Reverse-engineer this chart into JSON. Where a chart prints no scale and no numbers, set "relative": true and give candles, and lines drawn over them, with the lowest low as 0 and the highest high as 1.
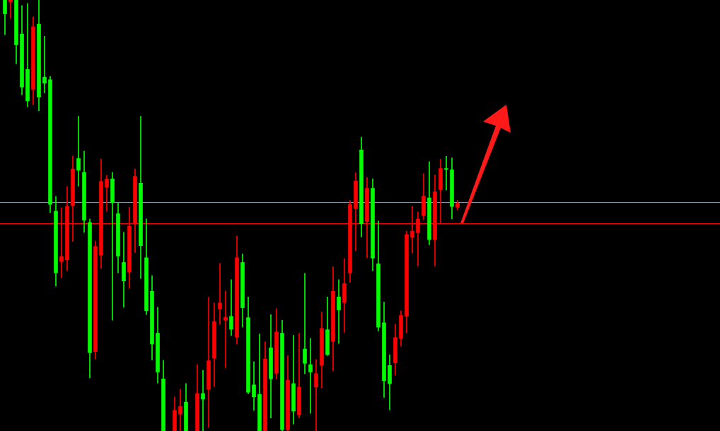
{
  "chart_data": {
    "type": "candlestick",
    "relative": true,
    "categories": [
      null,
      null,
      null,
      null,
      null,
      null,
      null,
      null,
      null,
      null,
      null,
      null,
      null,
      null,
      null,
      null,
      null,
      null,
      null,
      null,
      null,
      null,
      null,
      null,
      null,
      null,
      null,
      null,
      null,
      null,
      null,
      null,
      null,
      null,
      null,
      null,
      null,
      null,
      null,
      null,
      null,
      null,
      null,
      null,
      null,
      null,
      null,
      null,
      null,
      null,
      null,
      null,
      null,
      null,
      null,
      null,
      null,
      null,
      null,
      null,
      null,
      null,
      null,
      null,
      null,
      null,
      null,
      null,
      null,
      null,
      null,
      null,
      null,
      null,
      null,
      null,
      null,
      null,
      null,
      null,
      null
    ],
    "ohlc": [
      [
        1,
        1,
        0.92,
        0.968
      ],
      [
        0.996,
        1,
        0.957,
        1
      ],
      [
        1,
        1,
        0.852,
        0.896
      ],
      [
        0.921,
        0.987,
        0.78,
        0.798
      ],
      [
        0.839,
        0.992,
        0.752,
        0.766
      ],
      [
        0.793,
        0.961,
        0.757,
        0.938
      ],
      [
        0.944,
        1,
        0.743,
        0.775
      ],
      [
        0.821,
        0.916,
        0.784,
        0.807
      ],
      [
        0.815,
        0.823,
        0.507,
        0.526
      ],
      [
        0.51,
        0.544,
        0.336,
        0.367
      ],
      [
        0.393,
        0.518,
        0.356,
        0.405
      ],
      [
        0.397,
        0.567,
        0.372,
        0.521
      ],
      [
        0.523,
        0.638,
        0.44,
        0.608
      ],
      [
        0.632,
        0.73,
        0.568,
        0.605
      ],
      [
        0.6,
        0.649,
        0.461,
        0.489
      ],
      [
        0.484,
        0.492,
        0.123,
        0.182
      ],
      [
        0.184,
        0.441,
        0.167,
        0.428
      ],
      [
        0.408,
        0.631,
        0.377,
        0.579
      ],
      [
        0.566,
        0.593,
        0.51,
        0.585
      ],
      [
        0.585,
        0.6,
        0.257,
        0.53
      ],
      [
        0.504,
        0.53,
        0.367,
        0.406
      ],
      [
        0.391,
        0.461,
        0.287,
        0.348
      ],
      [
        0.369,
        0.519,
        0.331,
        0.475
      ],
      [
        0.481,
        0.608,
        0.414,
        0.591
      ],
      [
        0.575,
        0.73,
        0.354,
        0.43
      ],
      [
        0.402,
        0.492,
        0.27,
        0.279
      ],
      [
        0.324,
        0.36,
        0.165,
        0.202
      ],
      [
        0.227,
        0.287,
        0.111,
        0.137
      ],
      [
        0.121,
        0.164,
        0,
        0
      ],
      null,
      [
        0,
        0.079,
        0,
        0.048
      ],
      [
        0.039,
        0.097,
        0,
        0.057
      ],
      [
        0.067,
        0.11,
        0,
        0
      ],
      null,
      [
        0,
        0.154,
        0,
        0.087
      ],
      [
        0.087,
        0.141,
        0,
        0.074
      ],
      [
        0.097,
        0.31,
        0.008,
        0.163
      ],
      [
        0.169,
        0.297,
        0.103,
        0.254
      ],
      [
        0.284,
        0.389,
        0.248,
        0.297
      ],
      [
        0.257,
        0.325,
        0.147,
        0.264
      ],
      [
        0.266,
        0.351,
        0.222,
        0.236
      ],
      [
        0.218,
        0.452,
        0.202,
        0.402
      ],
      [
        0.391,
        0.411,
        0.241,
        0.286
      ],
      [
        0.263,
        0.311,
        0.086,
        0.09
      ],
      [
        0.107,
        0.161,
        0.048,
        0.079
      ],
      [
        0.085,
        0.225,
        0,
        0
      ],
      [
        0,
        0.207,
        0,
        0.167
      ],
      [
        0.193,
        0.27,
        0.03,
        0.121
      ],
      [
        0.134,
        0.284,
        0.121,
        0.23
      ],
      [
        0.227,
        0.257,
        0,
        0.003
      ],
      [
        0.003,
        0.175,
        0,
        0.118
      ],
      [
        0.11,
        0.222,
        0.016,
        0.046
      ],
      [
        0.038,
        0.227,
        0.03,
        0.102
      ],
      [
        0.19,
        0.366,
        0.133,
        0.157
      ],
      [
        0.154,
        0.215,
        0.041,
        0.137
      ],
      [
        0.102,
        0.166,
        0,
        0.133
      ],
      [
        0.153,
        0.276,
        0.1,
        0.238
      ],
      [
        0.235,
        0.311,
        0.175,
        0.177
      ],
      [
        0.208,
        0.381,
        0.14,
        0.324
      ],
      [
        0.311,
        0.351,
        0.203,
        0.281
      ],
      [
        0.298,
        0.4,
        0.229,
        0.342
      ],
      [
        0.367,
        0.535,
        0.345,
        0.526
      ],
      [
        0.516,
        0.599,
        0.418,
        0.58
      ],
      [
        0.652,
        0.682,
        0.45,
        0.481
      ],
      [
        0.486,
        0.588,
        0.402,
        0.563
      ],
      [
        0.563,
        0.585,
        0.372,
        0.401
      ],
      [
        0.388,
        0.487,
        0.232,
        0.241
      ],
      [
        0.251,
        0.299,
        0.078,
        0.117
      ],
      [
        0.152,
        0.177,
        0.049,
        0.11
      ],
      [
        0.158,
        0.248,
        0.13,
        0.217
      ],
      [
        0.215,
        0.279,
        0.197,
        0.268
      ],
      [
        0.266,
        0.464,
        0.228,
        0.456
      ],
      [
        0.449,
        0.521,
        0.413,
        0.464
      ],
      [
        0.46,
        0.508,
        0.383,
        0.492
      ],
      [
        0.5,
        0.597,
        0.49,
        0.545
      ],
      [
        0.541,
        0.625,
        0.432,
        0.444
      ],
      [
        0.444,
        0.594,
        0.383,
        0.555
      ],
      [
        0.56,
        0.631,
        0.481,
        0.609
      ],
      [
        0.609,
        0.637,
        0.559,
        0.607
      ],
      [
        0.606,
        0.634,
        0.492,
        0.521
      ],
      [
        0.519,
        0.535,
        0.513,
        0.529
      ]
    ],
    "colors": [
      "#00ff00",
      "#ff0000",
      "#00ff00",
      "#00ff00",
      "#00ff00",
      "#ff0000",
      "#00ff00",
      "#00ff00",
      "#00ff00",
      "#00ff00",
      "#ff0000",
      "#ff0000",
      "#ff0000",
      "#00ff00",
      "#00ff00",
      "#00ff00",
      "#ff0000",
      "#ff0000",
      "#ff0000",
      "#00ff00",
      "#00ff00",
      "#00ff00",
      "#ff0000",
      "#ff0000",
      "#00ff00",
      "#00ff00",
      "#00ff00",
      "#00ff00",
      "#00ff00",
      null,
      "#ff0000",
      "#ff0000",
      "#00ff00",
      null,
      "#ff0000",
      "#00ff00",
      "#ff0000",
      "#ff0000",
      "#ff0000",
      "#ff0000",
      "#00ff00",
      "#ff0000",
      "#00ff00",
      "#00ff00",
      "#00ff00",
      "#00ff00",
      "#ff0000",
      "#00ff00",
      "#ff0000",
      "#00ff00",
      "#ff0000",
      "#00ff00",
      "#ff0000",
      "#00ff00",
      "#00ff00",
      "#ff0000",
      "#ff0000",
      "#00ff00",
      "#ff0000",
      "#00ff00",
      "#ff0000",
      "#ff0000",
      "#ff0000",
      "#00ff00",
      "#ff0000",
      "#00ff00",
      "#00ff00",
      "#00ff00",
      "#00ff00",
      "#ff0000",
      "#ff0000",
      "#ff0000",
      "#ff0000",
      "#ff0000",
      "#ff0000",
      "#00ff00",
      "#ff0000",
      "#ff0000",
      "#00ff00",
      "#00ff00",
      "#ff0000"
    ],
    "ref_lines": [
      {
        "axis": "y",
        "value": 0.531,
        "color": "#8796aa"
      },
      {
        "axis": "y",
        "value": 0.482,
        "color": "#ff0000"
      }
    ]
  }
}
